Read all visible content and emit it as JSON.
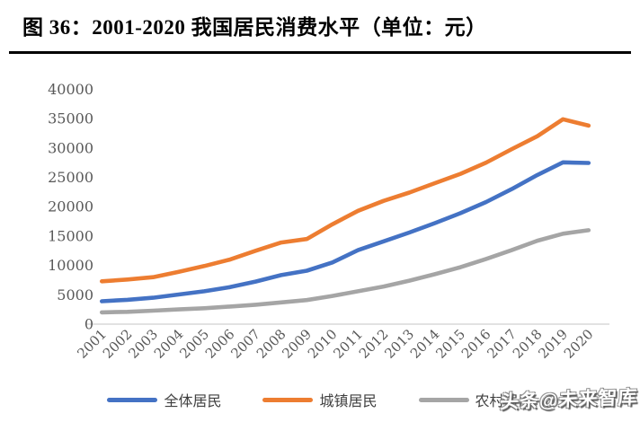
{
  "header": {
    "title": "图 36：2001-2020 我国居民消费水平（单位：元）"
  },
  "watermark": {
    "text": "头条@未来智库"
  },
  "colors": {
    "series_all": "#4472C4",
    "series_urban": "#ED7D31",
    "series_rural": "#A5A5A5",
    "axis_line": "#D9D9D9",
    "tick_label": "#595959",
    "title_text": "#000000"
  },
  "chart_data": {
    "type": "line",
    "title": "2001-2020 我国居民居民消费水平",
    "unit": "元",
    "xlabel": "",
    "ylabel": "",
    "ylim": [
      0,
      40000
    ],
    "ytick_step": 5000,
    "grid": false,
    "legend_position": "bottom",
    "categories": [
      "2001",
      "2002",
      "2003",
      "2004",
      "2005",
      "2006",
      "2007",
      "2008",
      "2009",
      "2010",
      "2011",
      "2012",
      "2013",
      "2014",
      "2015",
      "2016",
      "2017",
      "2018",
      "2019",
      "2020"
    ],
    "series": [
      {
        "name": "全体居民",
        "color": "#4472C4",
        "values": [
          3900,
          4150,
          4500,
          5050,
          5600,
          6300,
          7250,
          8350,
          9100,
          10500,
          12600,
          14100,
          15600,
          17200,
          18900,
          20800,
          23000,
          25400,
          27550,
          27450
        ]
      },
      {
        "name": "城镇居民",
        "color": "#ED7D31",
        "values": [
          7300,
          7600,
          8000,
          8900,
          9900,
          11000,
          12500,
          13900,
          14500,
          17000,
          19300,
          21000,
          22400,
          24000,
          25600,
          27500,
          29800,
          32000,
          34900,
          33800
        ]
      },
      {
        "name": "农村居民",
        "color": "#A5A5A5",
        "values": [
          2000,
          2100,
          2300,
          2500,
          2700,
          3000,
          3300,
          3700,
          4100,
          4800,
          5600,
          6400,
          7400,
          8500,
          9700,
          11100,
          12600,
          14200,
          15400,
          16000
        ]
      }
    ]
  }
}
